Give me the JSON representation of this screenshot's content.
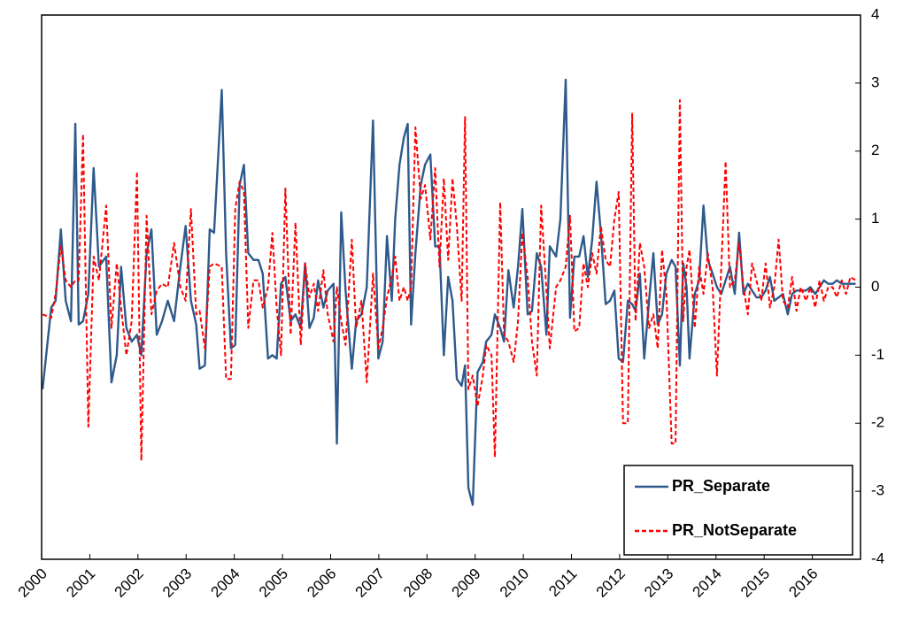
{
  "chart_data": {
    "type": "line",
    "x": [
      2000.02,
      2000.2,
      2000.29,
      2000.4,
      2000.5,
      2000.61,
      2000.7,
      2000.77,
      2000.86,
      2000.97,
      2001.08,
      2001.19,
      2001.34,
      2001.45,
      2001.56,
      2001.65,
      2001.76,
      2001.87,
      2001.98,
      2002.07,
      2002.18,
      2002.28,
      2002.39,
      2002.5,
      2002.62,
      2002.75,
      2002.88,
      2002.99,
      2003.1,
      2003.21,
      2003.28,
      2003.39,
      2003.49,
      2003.58,
      2003.74,
      2003.83,
      2003.93,
      2004.02,
      2004.11,
      2004.2,
      2004.29,
      2004.4,
      2004.5,
      2004.59,
      2004.7,
      2004.79,
      2004.88,
      2004.97,
      2005.06,
      2005.17,
      2005.27,
      2005.38,
      2005.47,
      2005.56,
      2005.65,
      2005.74,
      2005.85,
      2005.94,
      2006.06,
      2006.13,
      2006.22,
      2006.31,
      2006.44,
      2006.53,
      2006.64,
      2006.75,
      2006.88,
      2006.99,
      2007.08,
      2007.17,
      2007.27,
      2007.34,
      2007.43,
      2007.52,
      2007.6,
      2007.67,
      2007.76,
      2007.87,
      2007.96,
      2008.07,
      2008.17,
      2008.26,
      2008.35,
      2008.44,
      2008.53,
      2008.62,
      2008.72,
      2008.79,
      2008.86,
      2008.95,
      2009.05,
      2009.16,
      2009.23,
      2009.34,
      2009.41,
      2009.52,
      2009.6,
      2009.69,
      2009.8,
      2009.89,
      2009.98,
      2010.09,
      2010.18,
      2010.28,
      2010.37,
      2010.48,
      2010.55,
      2010.68,
      2010.77,
      2010.88,
      2010.97,
      2011.06,
      2011.16,
      2011.25,
      2011.34,
      2011.43,
      2011.52,
      2011.61,
      2011.71,
      2011.8,
      2011.89,
      2011.98,
      2012.07,
      2012.17,
      2012.26,
      2012.33,
      2012.42,
      2012.51,
      2012.61,
      2012.7,
      2012.79,
      2012.88,
      2012.97,
      2013.08,
      2013.16,
      2013.25,
      2013.32,
      2013.39,
      2013.45,
      2013.56,
      2013.65,
      2013.74,
      2013.83,
      2013.93,
      2014.02,
      2014.11,
      2014.2,
      2014.29,
      2014.39,
      2014.48,
      2014.57,
      2014.66,
      2014.75,
      2014.84,
      2014.94,
      2015.03,
      2015.12,
      2015.21,
      2015.3,
      2015.39,
      2015.49,
      2015.58,
      2015.67,
      2015.76,
      2015.87,
      2015.96,
      2016.06,
      2016.15,
      2016.24,
      2016.33,
      2016.42,
      2016.51,
      2016.61,
      2016.7,
      2016.79,
      2016.9
    ],
    "series": [
      {
        "name": "PR_Separate",
        "color": "#2e5a8c",
        "dash": "solid",
        "values": [
          -1.5,
          -0.3,
          -0.2,
          0.85,
          -0.2,
          -0.5,
          2.4,
          -0.55,
          -0.5,
          -0.1,
          1.75,
          0.3,
          0.45,
          -1.4,
          -1.0,
          0.3,
          -0.6,
          -0.8,
          -0.7,
          -1.0,
          0.5,
          0.85,
          -0.7,
          -0.5,
          -0.2,
          -0.5,
          0.3,
          0.9,
          -0.2,
          -0.55,
          -1.2,
          -1.15,
          0.85,
          0.8,
          2.9,
          0.5,
          -0.9,
          -0.85,
          1.5,
          1.8,
          0.5,
          0.4,
          0.4,
          0.2,
          -1.05,
          -1.0,
          -1.05,
          0.05,
          0.15,
          -0.5,
          -0.4,
          -0.6,
          0.35,
          -0.6,
          -0.45,
          0.1,
          -0.3,
          -0.05,
          0.05,
          -2.3,
          1.1,
          -0.05,
          -1.2,
          -0.5,
          -0.4,
          0.0,
          2.45,
          -1.05,
          -0.8,
          0.75,
          -0.2,
          1.0,
          1.8,
          2.2,
          2.4,
          -0.55,
          0.5,
          1.5,
          1.8,
          1.95,
          0.6,
          0.6,
          -1.0,
          0.15,
          -0.2,
          -1.35,
          -1.45,
          -1.15,
          -2.95,
          -3.2,
          -1.25,
          -1.1,
          -0.8,
          -0.7,
          -0.4,
          -0.6,
          -0.8,
          0.25,
          -0.3,
          0.3,
          1.15,
          -0.4,
          -0.35,
          0.5,
          0.3,
          -0.7,
          0.6,
          0.45,
          1.0,
          3.05,
          -0.45,
          0.45,
          0.45,
          0.75,
          0.15,
          0.7,
          1.55,
          0.8,
          -0.25,
          -0.2,
          -0.05,
          -1.05,
          -1.1,
          -0.2,
          -0.25,
          -0.35,
          0.2,
          -1.05,
          -0.2,
          0.5,
          -0.55,
          -0.4,
          0.2,
          0.4,
          0.3,
          -1.15,
          0.35,
          0.0,
          -1.05,
          -0.1,
          0.1,
          1.2,
          0.4,
          0.2,
          0.0,
          -0.1,
          0.1,
          0.3,
          -0.1,
          0.8,
          -0.1,
          0.05,
          -0.05,
          -0.15,
          -0.15,
          -0.05,
          0.15,
          -0.2,
          -0.15,
          -0.1,
          -0.4,
          -0.1,
          -0.05,
          -0.05,
          -0.05,
          0.0,
          -0.1,
          0.0,
          0.1,
          0.05,
          0.05,
          0.1,
          0.05,
          0.05,
          0.05,
          0.05
        ]
      },
      {
        "name": "PR_NotSeparate",
        "color": "#ff0000",
        "dash": "dashed",
        "values": [
          -0.4,
          -0.45,
          -0.1,
          0.6,
          0.1,
          0.0,
          0.1,
          0.1,
          2.25,
          -2.05,
          0.45,
          0.1,
          1.2,
          -0.6,
          0.35,
          -0.3,
          -1.0,
          -0.5,
          1.7,
          -2.55,
          1.05,
          -0.4,
          -0.05,
          0.05,
          0.0,
          0.65,
          0.0,
          -0.2,
          1.15,
          -0.4,
          -0.35,
          -0.9,
          0.3,
          0.35,
          0.3,
          -1.35,
          -1.35,
          1.15,
          1.55,
          1.4,
          -0.6,
          0.1,
          0.1,
          -0.3,
          0.0,
          0.8,
          -0.3,
          -1.0,
          1.45,
          -0.7,
          0.95,
          -0.85,
          0.35,
          -0.15,
          0.05,
          -0.35,
          0.25,
          -0.4,
          -0.8,
          0.0,
          -0.5,
          -0.85,
          0.7,
          -0.6,
          -0.2,
          -1.4,
          0.2,
          -0.9,
          -0.6,
          -0.15,
          0.15,
          0.45,
          -0.2,
          0.0,
          -0.2,
          0.0,
          2.35,
          1.3,
          1.5,
          0.7,
          1.75,
          0.3,
          1.6,
          0.4,
          1.6,
          0.9,
          -0.2,
          2.5,
          -1.5,
          -1.3,
          -1.75,
          -1.3,
          -0.85,
          -1.0,
          -2.5,
          1.25,
          -0.7,
          -0.8,
          -1.1,
          -0.5,
          0.8,
          0.15,
          -0.8,
          -1.3,
          1.2,
          -0.05,
          -0.9,
          0.0,
          0.1,
          0.3,
          1.05,
          -0.65,
          -0.6,
          0.35,
          0.0,
          0.5,
          0.2,
          0.9,
          0.4,
          0.3,
          1.0,
          1.4,
          -2.0,
          -2.0,
          2.55,
          -0.5,
          0.65,
          0.3,
          -0.6,
          -0.4,
          -0.9,
          0.55,
          -0.1,
          -2.3,
          -2.3,
          2.75,
          -0.5,
          0.3,
          0.55,
          -0.6,
          0.3,
          -0.1,
          0.5,
          0.0,
          -1.3,
          0.3,
          1.85,
          0.0,
          0.1,
          0.65,
          0.0,
          -0.4,
          0.35,
          0.1,
          -0.2,
          0.35,
          -0.3,
          0.0,
          0.7,
          -0.2,
          -0.3,
          0.15,
          -0.35,
          0.0,
          -0.2,
          0.0,
          -0.3,
          0.1,
          -0.2,
          0.0,
          0.0,
          -0.15,
          0.1,
          -0.1,
          0.15,
          0.1
        ]
      }
    ],
    "xlim": [
      2000,
      2017
    ],
    "xticks": [
      2000,
      2001,
      2002,
      2003,
      2004,
      2005,
      2006,
      2007,
      2008,
      2009,
      2010,
      2011,
      2012,
      2013,
      2014,
      2015,
      2016
    ],
    "ylim": [
      -4,
      4
    ],
    "yticks": [
      -4,
      -3,
      -2,
      -1,
      0,
      1,
      2,
      3,
      4
    ],
    "y_axis_side": "right",
    "legend": "lower right"
  }
}
